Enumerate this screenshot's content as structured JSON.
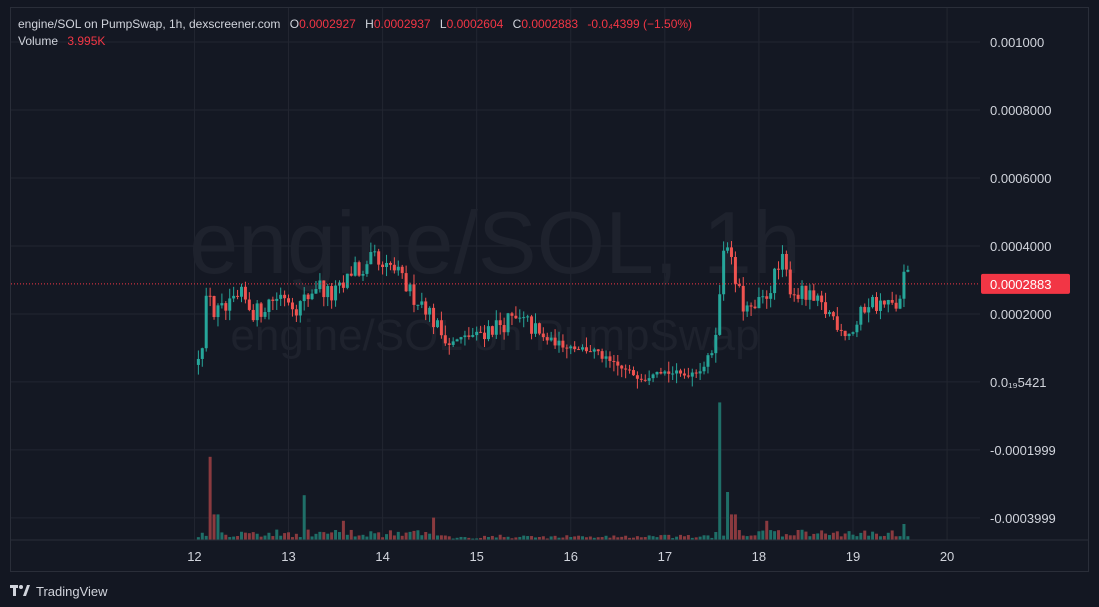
{
  "legend": {
    "symbol": "engine/SOL on PumpSwap, 1h, dexscreener.com",
    "o_label": "O",
    "o_value": "0.0002927",
    "h_label": "H",
    "h_value": "0.0002937",
    "l_label": "L",
    "l_value": "0.0002604",
    "c_label": "C",
    "c_value": "0.0002883",
    "change": "-0.0₄4399 (−1.50%)",
    "volume_label": "Volume",
    "volume_value": "3.995K"
  },
  "watermark": {
    "line1": "engine/SOL, 1h",
    "line2": "engine/SOL on PumpSwap"
  },
  "footer": {
    "brand": "TradingView",
    "logo_icon": "tradingview-logo-icon"
  },
  "colors": {
    "up": "#26a69a",
    "down": "#ef5350",
    "vol_up": "#1f6f68",
    "vol_down": "#8a3a3f",
    "last_price": "#f23645",
    "grid": "#222631",
    "text": "#d1d4dc"
  },
  "chart_data": {
    "type": "candlestick",
    "title": "engine/SOL on PumpSwap, 1h",
    "interval": "1h",
    "y_ticks": [
      {
        "value": 0.001,
        "label": "0.001000"
      },
      {
        "value": 0.0008,
        "label": "0.0008000"
      },
      {
        "value": 0.0006,
        "label": "0.0006000"
      },
      {
        "value": 0.0004,
        "label": "0.0004000"
      },
      {
        "value": 0.0002,
        "label": "0.0002000"
      },
      {
        "value": 5.421e-09,
        "label": "0.0₁₉5421"
      },
      {
        "value": -0.0001999,
        "label": "-0.0001999"
      },
      {
        "value": -0.0003999,
        "label": "-0.0003999"
      }
    ],
    "x_ticks": [
      {
        "value": 12,
        "label": "12"
      },
      {
        "value": 13,
        "label": "13"
      },
      {
        "value": 14,
        "label": "14"
      },
      {
        "value": 15,
        "label": "15"
      },
      {
        "value": 16,
        "label": "16"
      },
      {
        "value": 17,
        "label": "17"
      },
      {
        "value": 18,
        "label": "18"
      },
      {
        "value": 19,
        "label": "19"
      },
      {
        "value": 20,
        "label": "20"
      }
    ],
    "x_range": [
      10.05,
      20.35
    ],
    "y_range": [
      -0.000465,
      0.0011
    ],
    "last_price": {
      "value": 0.0002883,
      "label": "0.0002883"
    },
    "close_path": [
      [
        12.0,
        5e-05
      ],
      [
        12.08,
        0.0001
      ],
      [
        12.15,
        0.0003
      ],
      [
        12.2,
        0.0002
      ],
      [
        12.35,
        0.00021
      ],
      [
        12.5,
        0.00025
      ],
      [
        12.65,
        0.0002
      ],
      [
        12.8,
        0.00024
      ],
      [
        12.95,
        0.00026
      ],
      [
        13.1,
        0.00022
      ],
      [
        13.2,
        0.00025
      ],
      [
        13.3,
        0.00029
      ],
      [
        13.45,
        0.00025
      ],
      [
        13.6,
        0.00028
      ],
      [
        13.7,
        0.00035
      ],
      [
        13.8,
        0.0003
      ],
      [
        13.9,
        0.00037
      ],
      [
        14.0,
        0.00032
      ],
      [
        14.1,
        0.00034
      ],
      [
        14.2,
        0.0003
      ],
      [
        14.3,
        0.00026
      ],
      [
        14.45,
        0.00023
      ],
      [
        14.6,
        0.00015
      ],
      [
        14.7,
        0.00011
      ],
      [
        14.85,
        0.00013
      ],
      [
        15.0,
        0.00014
      ],
      [
        15.15,
        0.00016
      ],
      [
        15.35,
        0.00018
      ],
      [
        15.55,
        0.00017
      ],
      [
        15.7,
        0.00013
      ],
      [
        15.9,
        0.00011
      ],
      [
        16.1,
        0.0001
      ],
      [
        16.25,
        9e-05
      ],
      [
        16.4,
        6e-05
      ],
      [
        16.6,
        3e-05
      ],
      [
        16.8,
        1e-05
      ],
      [
        16.9,
        4e-05
      ],
      [
        17.0,
        3e-05
      ],
      [
        17.2,
        2e-05
      ],
      [
        17.4,
        4e-05
      ],
      [
        17.52,
        0.0001
      ],
      [
        17.6,
        0.00028
      ],
      [
        17.64,
        0.00047
      ],
      [
        17.72,
        0.00032
      ],
      [
        17.82,
        0.00023
      ],
      [
        17.92,
        0.0002
      ],
      [
        18.05,
        0.00024
      ],
      [
        18.15,
        0.0003
      ],
      [
        18.25,
        0.00035
      ],
      [
        18.35,
        0.00027
      ],
      [
        18.5,
        0.00025
      ],
      [
        18.65,
        0.00022
      ],
      [
        18.8,
        0.00019
      ],
      [
        18.95,
        0.00014
      ],
      [
        19.05,
        0.00017
      ],
      [
        19.15,
        0.00024
      ],
      [
        19.25,
        0.00023
      ],
      [
        19.4,
        0.00022
      ],
      [
        19.5,
        0.00023
      ],
      [
        19.55,
        0.00033
      ],
      [
        19.62,
        0.000288
      ]
    ],
    "volume_peaks": [
      {
        "x": 11.98,
        "value": 3.0
      },
      {
        "x": 12.17,
        "value": 2.6
      },
      {
        "x": 12.23,
        "value": 0.8
      },
      {
        "x": 13.15,
        "value": 1.4
      },
      {
        "x": 13.57,
        "value": 0.6
      },
      {
        "x": 14.55,
        "value": 0.7
      },
      {
        "x": 17.59,
        "value": 4.3
      },
      {
        "x": 17.65,
        "value": 1.5
      },
      {
        "x": 17.73,
        "value": 0.8
      },
      {
        "x": 18.1,
        "value": 0.6
      },
      {
        "x": 19.55,
        "value": 0.5
      }
    ]
  }
}
